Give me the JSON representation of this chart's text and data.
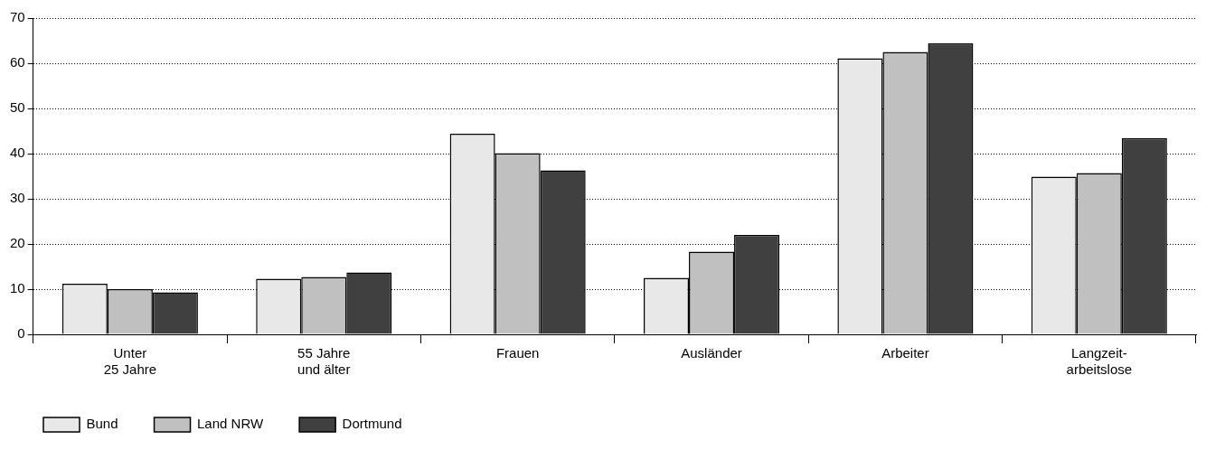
{
  "chart_data": {
    "type": "bar",
    "categories": [
      "Unter\n25 Jahre",
      "55 Jahre\nund älter",
      "Frauen",
      "Ausländer",
      "Arbeiter",
      "Langzeit-\narbeitslose"
    ],
    "series": [
      {
        "name": "Bund",
        "color": "#e8e8e8",
        "values": [
          11.2,
          12.3,
          44.4,
          12.5,
          61.1,
          34.9
        ]
      },
      {
        "name": "Land NRW",
        "color": "#c0c0c0",
        "values": [
          10.0,
          12.7,
          40.1,
          18.3,
          62.5,
          35.7
        ]
      },
      {
        "name": "Dortmund",
        "color": "#404040",
        "values": [
          9.3,
          13.7,
          36.3,
          22.0,
          64.4,
          43.4
        ]
      }
    ],
    "ylim": [
      0,
      70
    ],
    "yticks": [
      0,
      10,
      20,
      30,
      40,
      50,
      60,
      70
    ],
    "grid": "y",
    "legend": "bottom left"
  }
}
